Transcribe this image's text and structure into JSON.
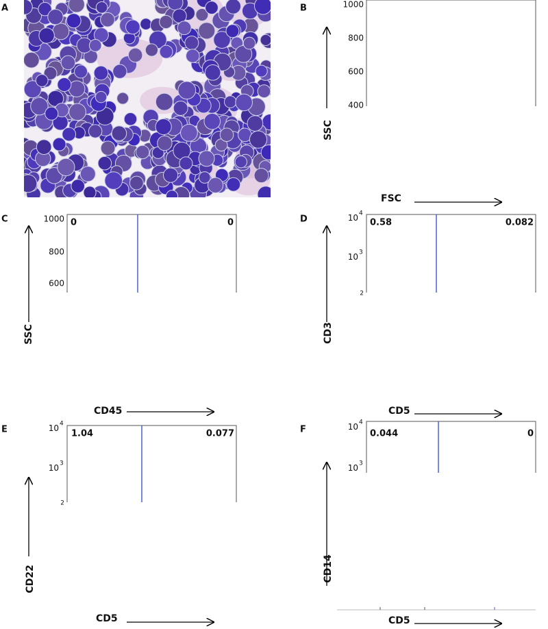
{
  "panels": [
    {
      "letter": "A"
    },
    {
      "letter": "B",
      "y_axis": "SSC",
      "x_axis": "FSC",
      "yticks": [
        1000,
        800,
        600,
        400
      ]
    },
    {
      "letter": "C",
      "y_axis": "SSC",
      "x_axis": "CD45",
      "yticks": [
        1000,
        800,
        600
      ],
      "quadrants": [
        0,
        0
      ]
    },
    {
      "letter": "D",
      "y_axis": "CD3",
      "x_axis": "CD5",
      "yticks": [
        {
          "base": 10,
          "exponent": 4
        },
        {
          "base": 10,
          "exponent": 3
        },
        2
      ],
      "quadrants": [
        0.58,
        0.082
      ]
    },
    {
      "letter": "E",
      "y_axis": "CD22",
      "x_axis": "CD5",
      "yticks": [
        {
          "base": 10,
          "exponent": 4
        },
        {
          "base": 10,
          "exponent": 3
        },
        2
      ],
      "quadrants": [
        1.04,
        0.077
      ]
    },
    {
      "letter": "F",
      "y_axis": "CD14",
      "x_axis": "CD5",
      "yticks": [
        {
          "base": 10,
          "exponent": 4
        },
        {
          "base": 10,
          "exponent": 3
        }
      ],
      "quadrants": [
        0.044,
        0
      ]
    }
  ]
}
